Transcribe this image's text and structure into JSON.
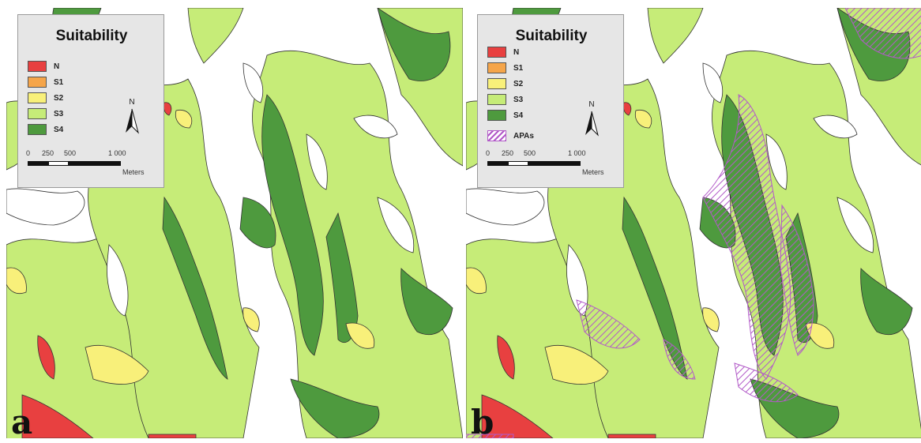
{
  "colors": {
    "background": "#ffffff",
    "N": "#e84040",
    "S1": "#f5a54a",
    "S2": "#f8f07a",
    "S3": "#c6ec78",
    "S4": "#4e9a3e",
    "APAs": "#b25ac8",
    "outline": "#333333"
  },
  "panels": [
    {
      "letter": "a",
      "legend": {
        "title": "Suitability",
        "items": [
          {
            "label": "N",
            "class": "N"
          },
          {
            "label": "S1",
            "class": "S1"
          },
          {
            "label": "S2",
            "class": "S2"
          },
          {
            "label": "S3",
            "class": "S3"
          },
          {
            "label": "S4",
            "class": "S4"
          }
        ],
        "north_label": "N",
        "scale_ticks": [
          "0",
          "250",
          "500",
          "1 000"
        ],
        "scale_units": "Meters"
      }
    },
    {
      "letter": "b",
      "legend": {
        "title": "Suitability",
        "items": [
          {
            "label": "N",
            "class": "N"
          },
          {
            "label": "S1",
            "class": "S1"
          },
          {
            "label": "S2",
            "class": "S2"
          },
          {
            "label": "S3",
            "class": "S3"
          },
          {
            "label": "S4",
            "class": "S4"
          },
          {
            "label": "APAs",
            "class": "APAs"
          }
        ],
        "north_label": "N",
        "scale_ticks": [
          "0",
          "250",
          "500",
          "1 000"
        ],
        "scale_units": "Meters"
      }
    }
  ]
}
